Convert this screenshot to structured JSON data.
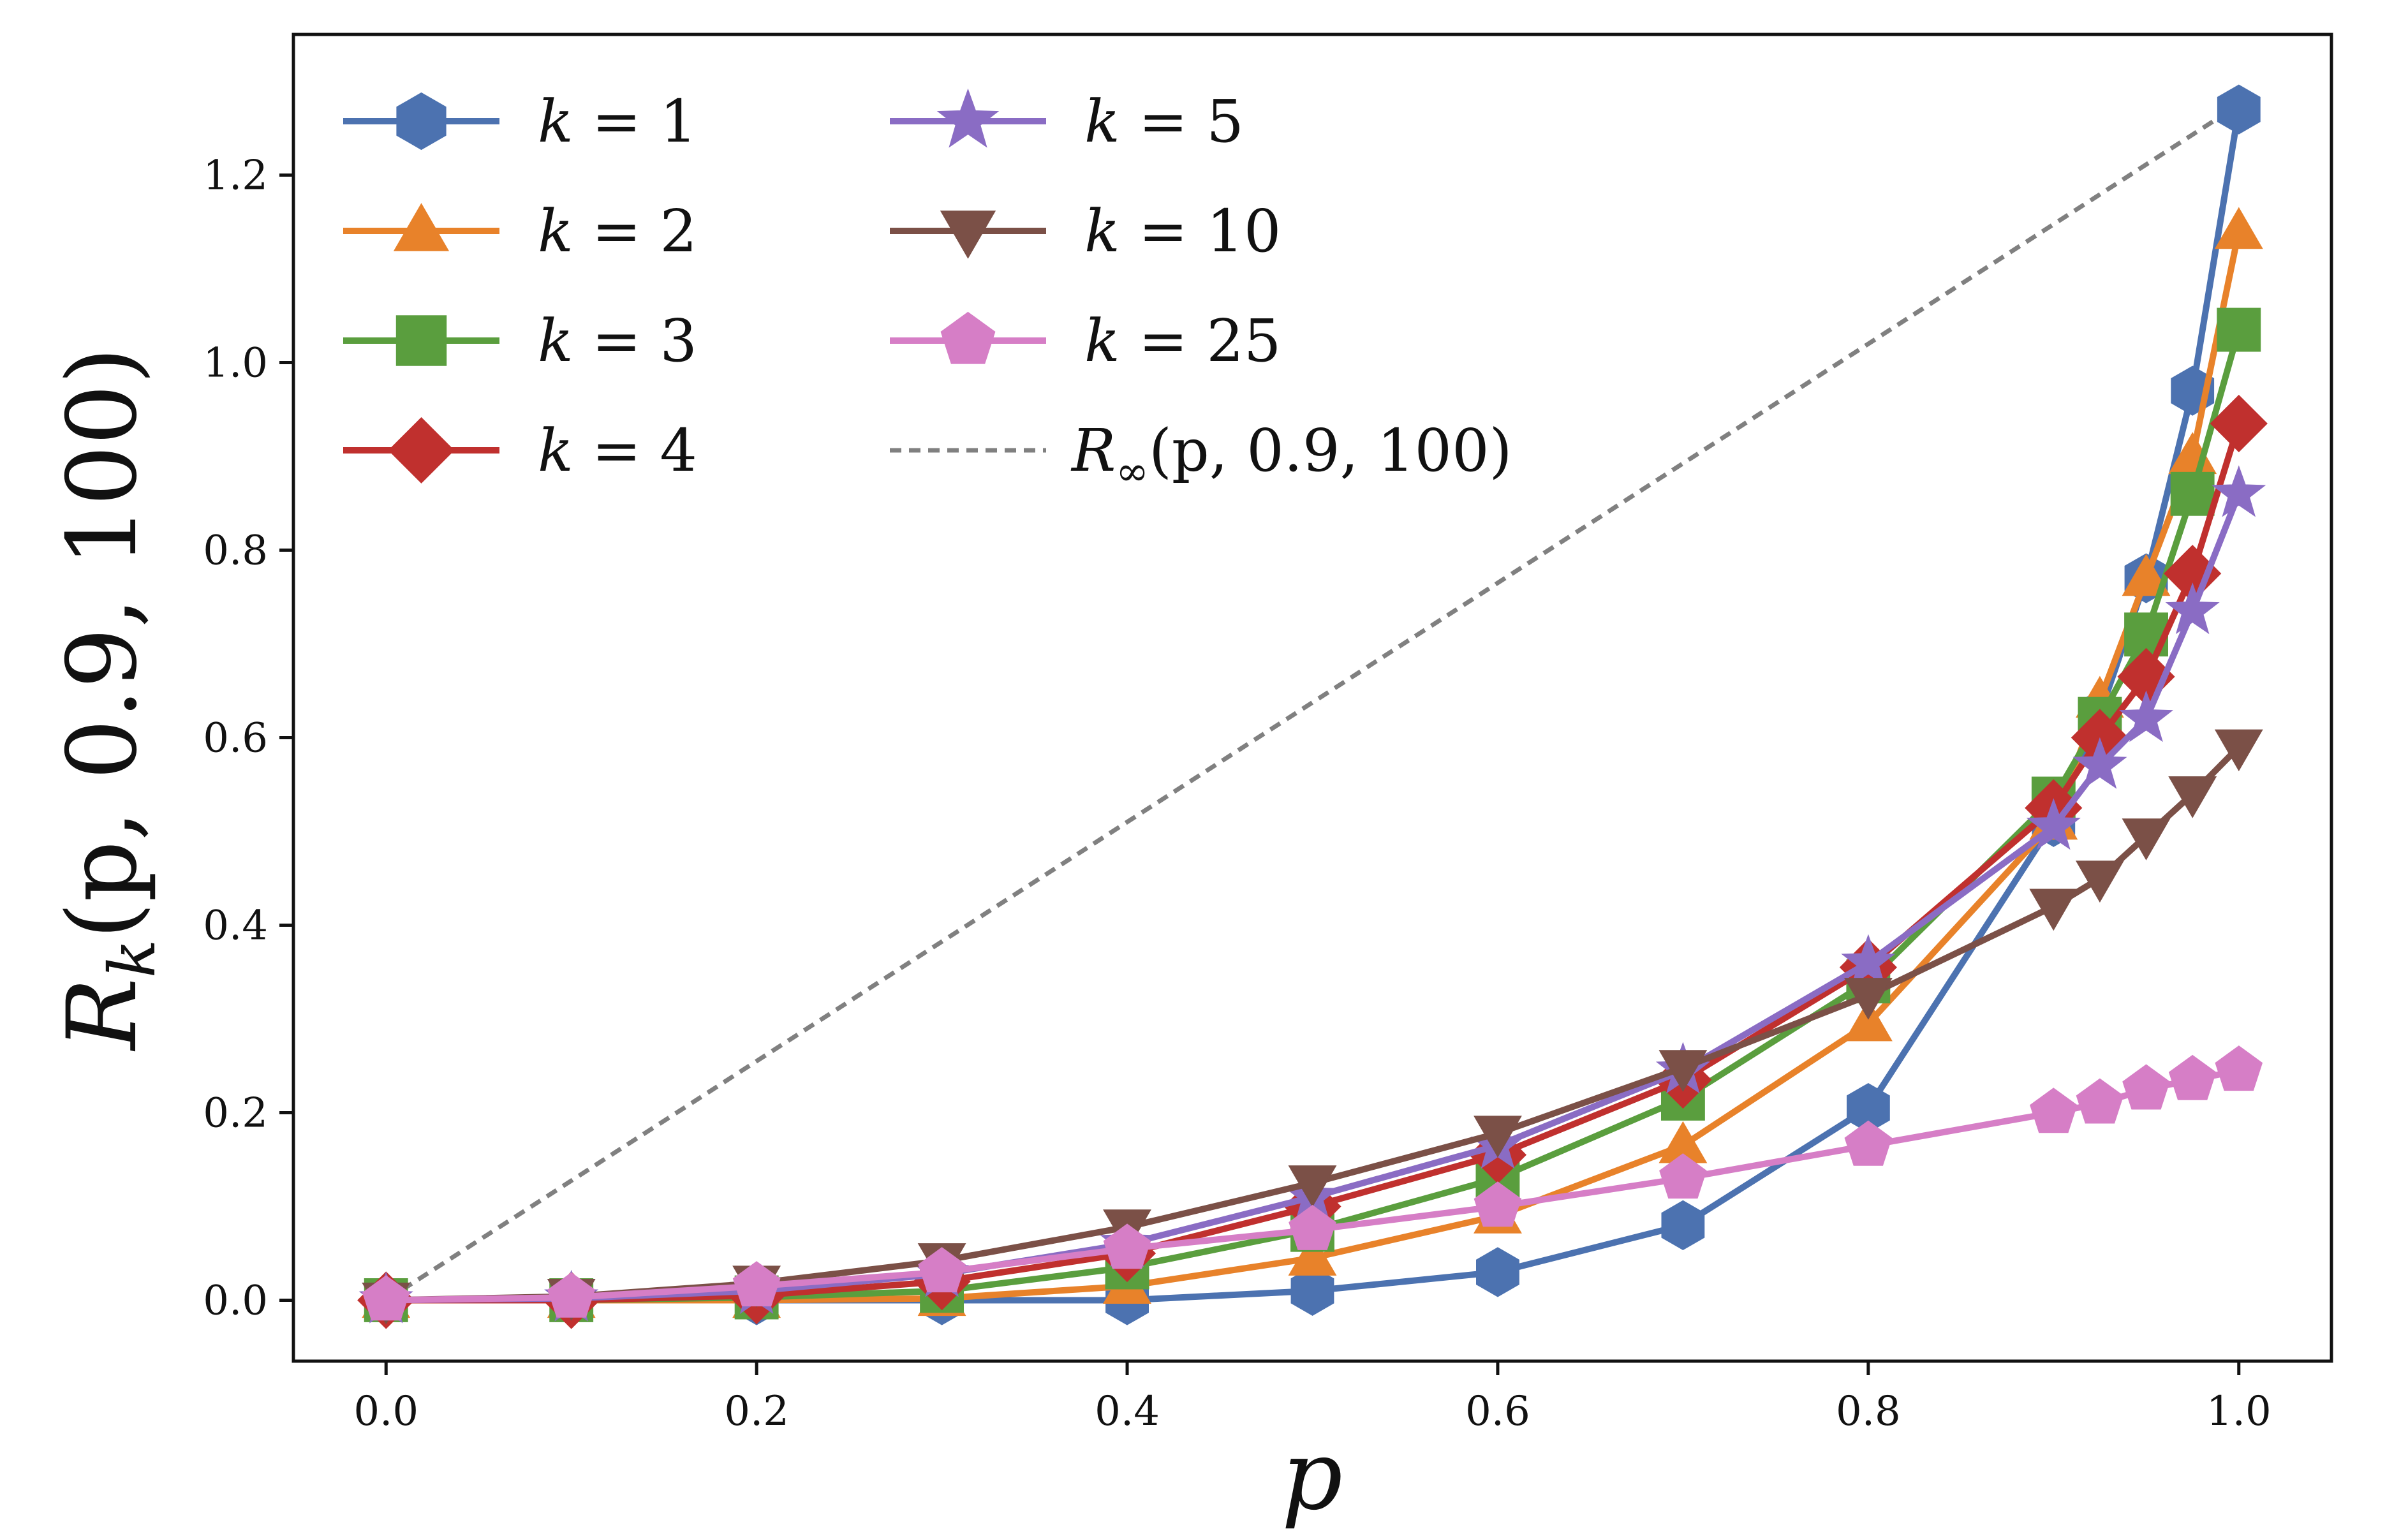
{
  "chart_data": {
    "type": "line",
    "title": "",
    "xlabel": "p",
    "ylabel": "R_k(p, 0.9, 100)",
    "ylabel_parts": {
      "main": "R",
      "sub": "k",
      "args": "(p, 0.9, 100)"
    },
    "xlim": [
      -0.05,
      1.05
    ],
    "ylim": [
      -0.065,
      1.35
    ],
    "x_ticks": [
      "0.0",
      "0.2",
      "0.4",
      "0.6",
      "0.8",
      "1.0"
    ],
    "y_ticks": [
      "0.0",
      "0.2",
      "0.4",
      "0.6",
      "0.8",
      "1.0",
      "1.2"
    ],
    "grid": false,
    "legend_position": "top-left",
    "x": [
      0.0,
      0.1,
      0.2,
      0.3,
      0.4,
      0.5,
      0.6,
      0.7,
      0.8,
      0.9,
      0.925,
      0.95,
      0.975,
      1.0
    ],
    "series": [
      {
        "name": "k = 1",
        "k_label": "k",
        "eq": "= 1",
        "color": "#4c72b0",
        "marker": "hexagon",
        "values": [
          0.0,
          0.0,
          0.0,
          0.0,
          0.0,
          0.01,
          0.03,
          0.08,
          0.205,
          0.51,
          0.625,
          0.77,
          0.97,
          1.27
        ]
      },
      {
        "name": "k = 2",
        "k_label": "k",
        "eq": "= 2",
        "color": "#e8822a",
        "marker": "triangle-up",
        "values": [
          0.0,
          0.0,
          0.0,
          0.002,
          0.015,
          0.045,
          0.09,
          0.165,
          0.295,
          0.51,
          0.64,
          0.77,
          0.9,
          1.14
        ]
      },
      {
        "name": "k = 3",
        "k_label": "k",
        "eq": "= 3",
        "color": "#5a9e3e",
        "marker": "square",
        "values": [
          0.0,
          0.0,
          0.003,
          0.01,
          0.035,
          0.075,
          0.13,
          0.215,
          0.34,
          0.535,
          0.62,
          0.71,
          0.86,
          1.035
        ]
      },
      {
        "name": "k = 4",
        "k_label": "k",
        "eq": "= 4",
        "color": "#c0302e",
        "marker": "diamond",
        "values": [
          0.0,
          0.0,
          0.005,
          0.02,
          0.05,
          0.1,
          0.155,
          0.235,
          0.355,
          0.525,
          0.6,
          0.665,
          0.775,
          0.935
        ]
      },
      {
        "name": "k = 5",
        "k_label": "k",
        "eq": "= 5",
        "color": "#8a6cc4",
        "marker": "star",
        "values": [
          0.0,
          0.002,
          0.01,
          0.028,
          0.06,
          0.11,
          0.165,
          0.245,
          0.36,
          0.505,
          0.57,
          0.62,
          0.735,
          0.86
        ]
      },
      {
        "name": "k = 10",
        "k_label": "k",
        "eq": "= 10",
        "color": "#7b5047",
        "marker": "triangle-down",
        "values": [
          0.0,
          0.004,
          0.018,
          0.042,
          0.078,
          0.125,
          0.178,
          0.248,
          0.325,
          0.42,
          0.45,
          0.495,
          0.54,
          0.59
        ]
      },
      {
        "name": "k = 25",
        "k_label": "k",
        "eq": "= 25",
        "color": "#d67ec6",
        "marker": "pentagon",
        "values": [
          0.0,
          0.003,
          0.015,
          0.03,
          0.055,
          0.075,
          0.1,
          0.13,
          0.165,
          0.2,
          0.21,
          0.225,
          0.235,
          0.245
        ]
      }
    ],
    "reference_line": {
      "name": "R_inf(p, 0.9, 100)",
      "label_main": "R",
      "label_sub": "∞",
      "label_args": "(p, 0.9, 100)",
      "color": "#808080",
      "style": "dashed",
      "x": [
        0.0,
        1.0
      ],
      "values": [
        0.0,
        1.275
      ]
    }
  }
}
